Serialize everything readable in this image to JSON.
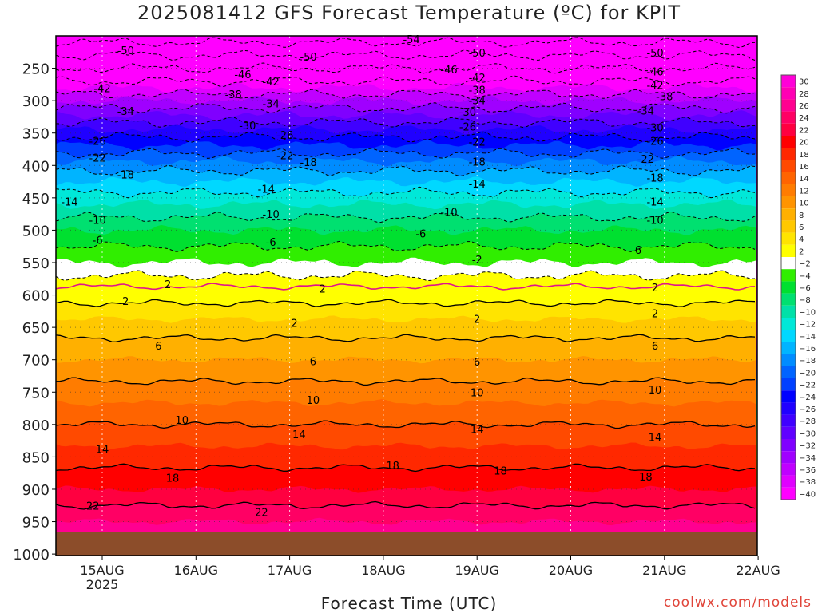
{
  "title": "2025081412 GFS Forecast Temperature (ºC) for KPIT",
  "xlabel": "Forecast Time (UTC)",
  "credit": "coolwx.com/models",
  "chart_data": {
    "type": "heatmap",
    "x_ticks": [
      "15AUG",
      "16AUG",
      "17AUG",
      "18AUG",
      "19AUG",
      "20AUG",
      "21AUG",
      "22AUG"
    ],
    "x_year": "2025",
    "y_ticks": [
      250,
      300,
      350,
      400,
      450,
      500,
      550,
      600,
      650,
      700,
      750,
      800,
      850,
      900,
      950,
      1000
    ],
    "y_range": [
      200,
      1000
    ],
    "y_reversed": true,
    "x_range": [
      "2025-08-14 12Z",
      "2025-08-22 00Z"
    ],
    "colorbar_levels": [
      30,
      28,
      26,
      24,
      22,
      20,
      18,
      16,
      14,
      12,
      10,
      8,
      6,
      4,
      2,
      -2,
      -4,
      -6,
      -8,
      -10,
      -12,
      -14,
      -16,
      -18,
      -20,
      -22,
      -24,
      -26,
      -28,
      -30,
      -32,
      -34,
      -36,
      -38,
      -40
    ],
    "colorbar_colors": [
      "#ff00d8",
      "#ff00b4",
      "#ff0090",
      "#ff0064",
      "#ff0040",
      "#ff0000",
      "#ff2800",
      "#ff4a00",
      "#ff6400",
      "#ff7c00",
      "#ff9400",
      "#ffb000",
      "#ffc800",
      "#ffe400",
      "#ffff00",
      "#ffffff",
      "#30ee00",
      "#00e030",
      "#00e070",
      "#00e0a8",
      "#00e8d8",
      "#00d8ff",
      "#00b4ff",
      "#008cff",
      "#0064ff",
      "#0040ff",
      "#0000ff",
      "#2000ff",
      "#4000ff",
      "#6000ff",
      "#8000ff",
      "#a000ff",
      "#c000ff",
      "#e000ff",
      "#ff00ff"
    ],
    "contour_labels": [
      {
        "value": -54,
        "t": 3.3,
        "p": 205
      },
      {
        "value": -50,
        "t": 0.25,
        "p": 222
      },
      {
        "value": -50,
        "t": 2.2,
        "p": 232
      },
      {
        "value": -50,
        "t": 4.0,
        "p": 226
      },
      {
        "value": -50,
        "t": 5.9,
        "p": 226
      },
      {
        "value": -46,
        "t": 1.5,
        "p": 259
      },
      {
        "value": -46,
        "t": 3.7,
        "p": 252
      },
      {
        "value": -46,
        "t": 5.9,
        "p": 255
      },
      {
        "value": -42,
        "t": 0.0,
        "p": 281
      },
      {
        "value": -42,
        "t": 1.8,
        "p": 270
      },
      {
        "value": -42,
        "t": 4.0,
        "p": 264
      },
      {
        "value": -42,
        "t": 5.9,
        "p": 276
      },
      {
        "value": -38,
        "t": 1.4,
        "p": 290
      },
      {
        "value": -38,
        "t": 4.0,
        "p": 283
      },
      {
        "value": -38,
        "t": 6.0,
        "p": 293
      },
      {
        "value": -34,
        "t": 0.25,
        "p": 316
      },
      {
        "value": -34,
        "t": 1.8,
        "p": 304
      },
      {
        "value": -34,
        "t": 4.0,
        "p": 299
      },
      {
        "value": -34,
        "t": 5.8,
        "p": 315
      },
      {
        "value": -30,
        "t": 1.55,
        "p": 338
      },
      {
        "value": -30,
        "t": 3.9,
        "p": 317
      },
      {
        "value": -30,
        "t": 5.9,
        "p": 341
      },
      {
        "value": -26,
        "t": -0.05,
        "p": 362
      },
      {
        "value": -26,
        "t": 1.95,
        "p": 353
      },
      {
        "value": -26,
        "t": 3.9,
        "p": 340
      },
      {
        "value": -26,
        "t": 5.9,
        "p": 362
      },
      {
        "value": -22,
        "t": -0.05,
        "p": 388
      },
      {
        "value": -22,
        "t": 1.95,
        "p": 384
      },
      {
        "value": -22,
        "t": 4.0,
        "p": 363
      },
      {
        "value": -22,
        "t": 5.8,
        "p": 390
      },
      {
        "value": -18,
        "t": 0.25,
        "p": 414
      },
      {
        "value": -18,
        "t": 2.2,
        "p": 395
      },
      {
        "value": -18,
        "t": 4.0,
        "p": 394
      },
      {
        "value": -18,
        "t": 5.9,
        "p": 419
      },
      {
        "value": -14,
        "t": -0.35,
        "p": 456
      },
      {
        "value": -14,
        "t": 1.75,
        "p": 436
      },
      {
        "value": -14,
        "t": 4.0,
        "p": 428
      },
      {
        "value": -14,
        "t": 5.9,
        "p": 456
      },
      {
        "value": -10,
        "t": -0.05,
        "p": 484
      },
      {
        "value": -10,
        "t": 1.8,
        "p": 475
      },
      {
        "value": -10,
        "t": 3.7,
        "p": 472
      },
      {
        "value": -10,
        "t": 5.9,
        "p": 484
      },
      {
        "value": -6,
        "t": -0.05,
        "p": 515
      },
      {
        "value": -6,
        "t": 1.8,
        "p": 518
      },
      {
        "value": -6,
        "t": 3.4,
        "p": 505
      },
      {
        "value": -6,
        "t": 5.7,
        "p": 530
      },
      {
        "value": -2,
        "t": 4.0,
        "p": 545
      },
      {
        "value": 2,
        "t": 0.7,
        "p": 583
      },
      {
        "value": 2,
        "t": 2.35,
        "p": 590
      },
      {
        "value": 2,
        "t": 5.9,
        "p": 588
      },
      {
        "value": 2,
        "t": 0.25,
        "p": 609
      },
      {
        "value": 2,
        "t": 2.05,
        "p": 643
      },
      {
        "value": 2,
        "t": 4.0,
        "p": 637
      },
      {
        "value": 2,
        "t": 5.9,
        "p": 628
      },
      {
        "value": 6,
        "t": 0.6,
        "p": 678
      },
      {
        "value": 6,
        "t": 2.25,
        "p": 702
      },
      {
        "value": 6,
        "t": 4.0,
        "p": 703
      },
      {
        "value": 6,
        "t": 5.9,
        "p": 678
      },
      {
        "value": 10,
        "t": 0.85,
        "p": 793
      },
      {
        "value": 10,
        "t": 2.25,
        "p": 762
      },
      {
        "value": 10,
        "t": 4.0,
        "p": 750
      },
      {
        "value": 10,
        "t": 5.9,
        "p": 746
      },
      {
        "value": 14,
        "t": 0.0,
        "p": 838
      },
      {
        "value": 14,
        "t": 2.1,
        "p": 815
      },
      {
        "value": 14,
        "t": 4.0,
        "p": 807
      },
      {
        "value": 14,
        "t": 5.9,
        "p": 819
      },
      {
        "value": 18,
        "t": 0.75,
        "p": 882
      },
      {
        "value": 18,
        "t": 3.1,
        "p": 863
      },
      {
        "value": 18,
        "t": 4.25,
        "p": 871
      },
      {
        "value": 18,
        "t": 5.8,
        "p": 880
      },
      {
        "value": 22,
        "t": -0.1,
        "p": 925
      },
      {
        "value": 22,
        "t": 1.7,
        "p": 935
      }
    ]
  }
}
